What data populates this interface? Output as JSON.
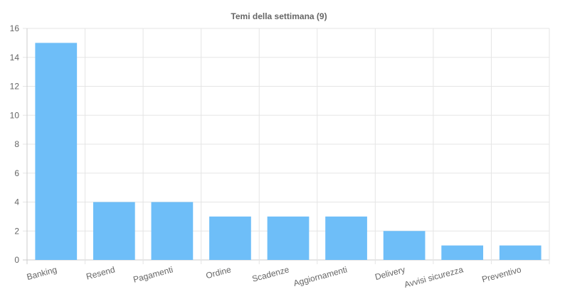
{
  "chart_data": {
    "type": "bar",
    "title": "Temi della settimana (9)",
    "categories": [
      "Banking",
      "Resend",
      "Pagamenti",
      "Ordine",
      "Scadenze",
      "Aggiornamenti",
      "Delivery",
      "Avvisi sicurezza",
      "Preventivo"
    ],
    "values": [
      15,
      4,
      4,
      3,
      3,
      3,
      2,
      1,
      1
    ],
    "ylim": [
      0,
      16
    ],
    "yticks": [
      0,
      2,
      4,
      6,
      8,
      10,
      12,
      14,
      16
    ],
    "grid": true,
    "legend": "none",
    "bar_color": "#6ebef8"
  }
}
